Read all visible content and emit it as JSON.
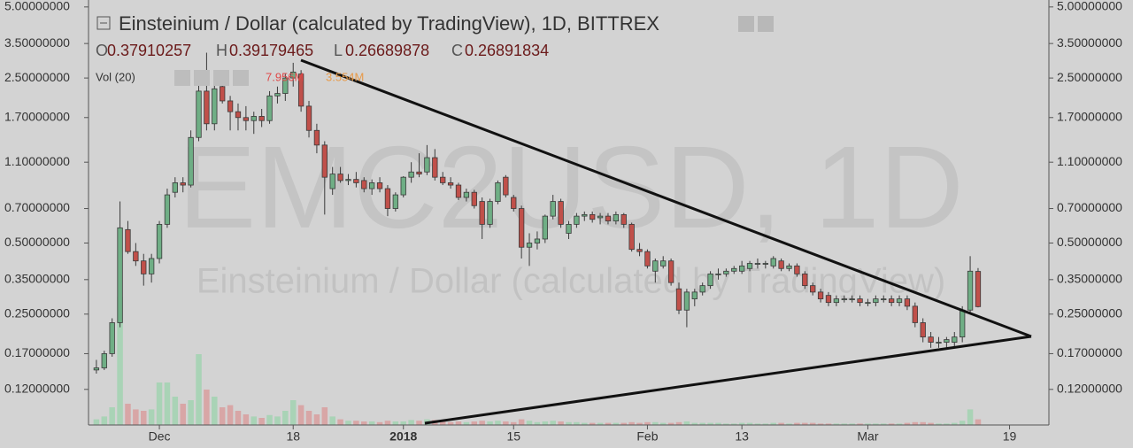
{
  "chart_data": {
    "type": "candlestick",
    "title": "Einsteinium / Dollar (calculated by TradingView), 1D, BITTREX",
    "watermark": {
      "symbol": "EMC2USD, 1D",
      "description": "Einsteinium / Dollar (calculated by TradingView)"
    },
    "header_labels": {
      "open": "O",
      "high": "H",
      "low": "L",
      "close": "C"
    },
    "volume_indicator": "Vol (20)",
    "volume_label": "7.956M",
    "volume_ma_label": "3.554M",
    "log_scale": true,
    "grid": false,
    "up_color": "#6fae85",
    "down_color": "#c0504a",
    "up_volume_color": "#a9d3b6",
    "down_volume_color": "#d8a6a6",
    "x": [
      "2017-11-23",
      "2017-11-24",
      "2017-11-25",
      "2017-11-26",
      "2017-11-27",
      "2017-11-28",
      "2017-11-29",
      "2017-11-30",
      "2017-12-01",
      "2017-12-02",
      "2017-12-03",
      "2017-12-04",
      "2017-12-05",
      "2017-12-06",
      "2017-12-07",
      "2017-12-08",
      "2017-12-09",
      "2017-12-10",
      "2017-12-11",
      "2017-12-12",
      "2017-12-13",
      "2017-12-14",
      "2017-12-15",
      "2017-12-16",
      "2017-12-17",
      "2017-12-18",
      "2017-12-19",
      "2017-12-20",
      "2017-12-21",
      "2017-12-22",
      "2017-12-23",
      "2017-12-24",
      "2017-12-25",
      "2017-12-26",
      "2017-12-27",
      "2017-12-28",
      "2017-12-29",
      "2017-12-30",
      "2017-12-31",
      "2018-01-01",
      "2018-01-02",
      "2018-01-03",
      "2018-01-04",
      "2018-01-05",
      "2018-01-06",
      "2018-01-07",
      "2018-01-08",
      "2018-01-09",
      "2018-01-10",
      "2018-01-11",
      "2018-01-12",
      "2018-01-13",
      "2018-01-14",
      "2018-01-15",
      "2018-01-16",
      "2018-01-17",
      "2018-01-18",
      "2018-01-19",
      "2018-01-20",
      "2018-01-21",
      "2018-01-22",
      "2018-01-23",
      "2018-01-24",
      "2018-01-25",
      "2018-01-26",
      "2018-01-27",
      "2018-01-28",
      "2018-01-29",
      "2018-01-30",
      "2018-01-31",
      "2018-02-01",
      "2018-02-02",
      "2018-02-03",
      "2018-02-04",
      "2018-02-05",
      "2018-02-06",
      "2018-02-07",
      "2018-02-08",
      "2018-02-09",
      "2018-02-10",
      "2018-02-11",
      "2018-02-12",
      "2018-02-13",
      "2018-02-14",
      "2018-02-15",
      "2018-02-16",
      "2018-02-17",
      "2018-02-18",
      "2018-02-19",
      "2018-02-20",
      "2018-02-21",
      "2018-02-22",
      "2018-02-23",
      "2018-02-24",
      "2018-02-25",
      "2018-02-26",
      "2018-02-27",
      "2018-02-28",
      "2018-03-01",
      "2018-03-02",
      "2018-03-03",
      "2018-03-04",
      "2018-03-05",
      "2018-03-06",
      "2018-03-07",
      "2018-03-08",
      "2018-03-09",
      "2018-03-10",
      "2018-03-11",
      "2018-03-12",
      "2018-03-13",
      "2018-03-14",
      "2018-03-15"
    ],
    "open": [
      0.145,
      0.148,
      0.17,
      0.23,
      0.57,
      0.46,
      0.42,
      0.37,
      0.43,
      0.6,
      0.82,
      0.9,
      0.88,
      1.4,
      2.2,
      1.6,
      2.3,
      2.0,
      1.8,
      1.7,
      1.65,
      1.72,
      1.65,
      2.1,
      2.15,
      2.5,
      2.6,
      1.9,
      1.5,
      1.3,
      0.85,
      0.98,
      0.92,
      0.93,
      0.92,
      0.85,
      0.9,
      0.85,
      0.7,
      0.8,
      0.95,
      1.0,
      1.0,
      1.15,
      0.95,
      0.9,
      0.88,
      0.78,
      0.82,
      0.75,
      0.6,
      0.75,
      0.95,
      0.78,
      0.7,
      0.48,
      0.5,
      0.52,
      0.65,
      0.75,
      0.55,
      0.6,
      0.65,
      0.66,
      0.64,
      0.65,
      0.62,
      0.66,
      0.6,
      0.47,
      0.46,
      0.38,
      0.4,
      0.42,
      0.32,
      0.26,
      0.29,
      0.31,
      0.33,
      0.37,
      0.37,
      0.38,
      0.38,
      0.39,
      0.41,
      0.41,
      0.4,
      0.42,
      0.39,
      0.4,
      0.37,
      0.33,
      0.31,
      0.3,
      0.28,
      0.29,
      0.29,
      0.29,
      0.28,
      0.28,
      0.29,
      0.29,
      0.28,
      0.29,
      0.27,
      0.23,
      0.2,
      0.19,
      0.19,
      0.19,
      0.2,
      0.26,
      0.37910257
    ],
    "high": [
      0.16,
      0.175,
      0.24,
      0.75,
      0.62,
      0.5,
      0.45,
      0.45,
      0.62,
      0.85,
      0.95,
      0.95,
      1.5,
      2.6,
      3.2,
      2.4,
      2.6,
      2.1,
      1.95,
      1.9,
      1.8,
      1.85,
      2.2,
      2.3,
      2.6,
      2.9,
      2.7,
      2.0,
      1.6,
      1.35,
      1.05,
      1.05,
      0.98,
      1.0,
      0.95,
      0.93,
      0.95,
      0.88,
      0.82,
      0.96,
      1.1,
      1.2,
      1.3,
      1.25,
      1.0,
      0.95,
      0.9,
      0.85,
      0.84,
      0.78,
      0.77,
      0.92,
      0.97,
      0.8,
      0.72,
      0.55,
      0.56,
      0.66,
      0.8,
      0.77,
      0.62,
      0.67,
      0.68,
      0.68,
      0.67,
      0.67,
      0.68,
      0.67,
      0.61,
      0.5,
      0.47,
      0.43,
      0.44,
      0.43,
      0.34,
      0.32,
      0.32,
      0.34,
      0.38,
      0.39,
      0.39,
      0.4,
      0.42,
      0.42,
      0.43,
      0.42,
      0.44,
      0.43,
      0.41,
      0.41,
      0.38,
      0.34,
      0.32,
      0.31,
      0.3,
      0.3,
      0.3,
      0.3,
      0.29,
      0.3,
      0.3,
      0.3,
      0.3,
      0.3,
      0.28,
      0.24,
      0.21,
      0.2,
      0.2,
      0.21,
      0.27,
      0.44,
      0.39179465
    ],
    "low": [
      0.14,
      0.145,
      0.165,
      0.22,
      0.45,
      0.4,
      0.33,
      0.34,
      0.41,
      0.58,
      0.78,
      0.82,
      0.86,
      1.35,
      1.5,
      1.5,
      1.95,
      1.5,
      1.5,
      1.5,
      1.45,
      1.55,
      1.6,
      1.95,
      2.0,
      2.3,
      1.8,
      1.4,
      1.2,
      0.66,
      0.8,
      0.9,
      0.88,
      0.86,
      0.82,
      0.8,
      0.82,
      0.65,
      0.68,
      0.78,
      0.9,
      0.95,
      0.97,
      0.92,
      0.88,
      0.85,
      0.76,
      0.75,
      0.7,
      0.52,
      0.58,
      0.73,
      0.78,
      0.68,
      0.43,
      0.4,
      0.47,
      0.5,
      0.63,
      0.58,
      0.52,
      0.58,
      0.62,
      0.61,
      0.6,
      0.6,
      0.6,
      0.58,
      0.46,
      0.44,
      0.39,
      0.34,
      0.39,
      0.33,
      0.25,
      0.22,
      0.27,
      0.3,
      0.32,
      0.35,
      0.36,
      0.37,
      0.37,
      0.38,
      0.39,
      0.39,
      0.39,
      0.38,
      0.38,
      0.36,
      0.32,
      0.3,
      0.28,
      0.27,
      0.27,
      0.28,
      0.28,
      0.27,
      0.27,
      0.27,
      0.28,
      0.27,
      0.27,
      0.26,
      0.22,
      0.19,
      0.18,
      0.18,
      0.18,
      0.18,
      0.19,
      0.25,
      0.26689878
    ],
    "close": [
      0.148,
      0.17,
      0.23,
      0.58,
      0.46,
      0.42,
      0.37,
      0.43,
      0.6,
      0.8,
      0.9,
      0.88,
      1.4,
      2.2,
      1.6,
      2.25,
      2.0,
      1.8,
      1.7,
      1.65,
      1.72,
      1.65,
      2.1,
      2.15,
      2.5,
      2.65,
      1.9,
      1.5,
      1.3,
      0.95,
      0.98,
      0.92,
      0.93,
      0.9,
      0.85,
      0.9,
      0.85,
      0.7,
      0.8,
      0.95,
      1.0,
      0.98,
      1.15,
      0.95,
      0.9,
      0.88,
      0.78,
      0.82,
      0.72,
      0.6,
      0.75,
      0.9,
      0.8,
      0.7,
      0.48,
      0.5,
      0.52,
      0.65,
      0.75,
      0.6,
      0.6,
      0.65,
      0.66,
      0.63,
      0.65,
      0.62,
      0.66,
      0.6,
      0.47,
      0.46,
      0.4,
      0.42,
      0.42,
      0.34,
      0.26,
      0.31,
      0.31,
      0.33,
      0.37,
      0.37,
      0.38,
      0.39,
      0.4,
      0.41,
      0.41,
      0.41,
      0.43,
      0.39,
      0.4,
      0.37,
      0.33,
      0.31,
      0.29,
      0.28,
      0.29,
      0.29,
      0.29,
      0.28,
      0.28,
      0.29,
      0.29,
      0.28,
      0.29,
      0.27,
      0.23,
      0.2,
      0.19,
      0.19,
      0.195,
      0.2,
      0.26,
      0.38,
      0.26891834
    ],
    "volume": [
      8,
      12,
      25,
      181,
      30,
      22,
      20,
      22,
      60,
      60,
      40,
      30,
      35,
      100,
      50,
      40,
      25,
      28,
      20,
      15,
      12,
      10,
      14,
      12,
      20,
      35,
      28,
      20,
      15,
      25,
      12,
      8,
      6,
      6,
      5,
      5,
      4,
      6,
      5,
      5,
      7,
      6,
      8,
      7,
      5,
      4,
      5,
      4,
      5,
      6,
      5,
      6,
      5,
      4,
      8,
      6,
      4,
      5,
      6,
      5,
      4,
      4,
      3,
      3,
      3,
      3,
      3,
      3,
      4,
      3,
      4,
      4,
      3,
      3,
      4,
      5,
      3,
      3,
      3,
      3,
      2,
      2,
      3,
      3,
      2,
      2,
      3,
      3,
      2,
      3,
      3,
      3,
      2,
      2,
      2,
      2,
      2,
      2,
      2,
      2,
      2,
      2,
      2,
      3,
      4,
      4,
      3,
      2,
      2,
      3,
      6,
      22,
      7.956
    ],
    "volume_ylim": [
      0,
      600
    ],
    "xlim": [
      "2017-11-22",
      "2018-03-24"
    ],
    "xticks": [
      {
        "value": "2017-12-01",
        "label": "Dec"
      },
      {
        "value": "2017-12-18",
        "label": "18"
      },
      {
        "value": "2018-01-01",
        "label": "2018"
      },
      {
        "value": "2018-01-15",
        "label": "15"
      },
      {
        "value": "2018-02-01",
        "label": "Feb"
      },
      {
        "value": "2018-02-13",
        "label": "13"
      },
      {
        "value": "2018-03-01",
        "label": "Mar"
      },
      {
        "value": "2018-03-19",
        "label": "19"
      }
    ],
    "ylim": [
      0.0848,
      5.35
    ],
    "yticks": [
      {
        "value": 5,
        "label": "5.00000000"
      },
      {
        "value": 3.5,
        "label": "3.50000000"
      },
      {
        "value": 2.5,
        "label": "2.50000000"
      },
      {
        "value": 1.7,
        "label": "1.70000000"
      },
      {
        "value": 1.1,
        "label": "1.10000000"
      },
      {
        "value": 0.7,
        "label": "0.70000000"
      },
      {
        "value": 0.5,
        "label": "0.50000000"
      },
      {
        "value": 0.35,
        "label": "0.35000000"
      },
      {
        "value": 0.25,
        "label": "0.25000000"
      },
      {
        "value": 0.17,
        "label": "0.17000000"
      },
      {
        "value": 0.12,
        "label": "0.12000000"
      }
    ]
  }
}
